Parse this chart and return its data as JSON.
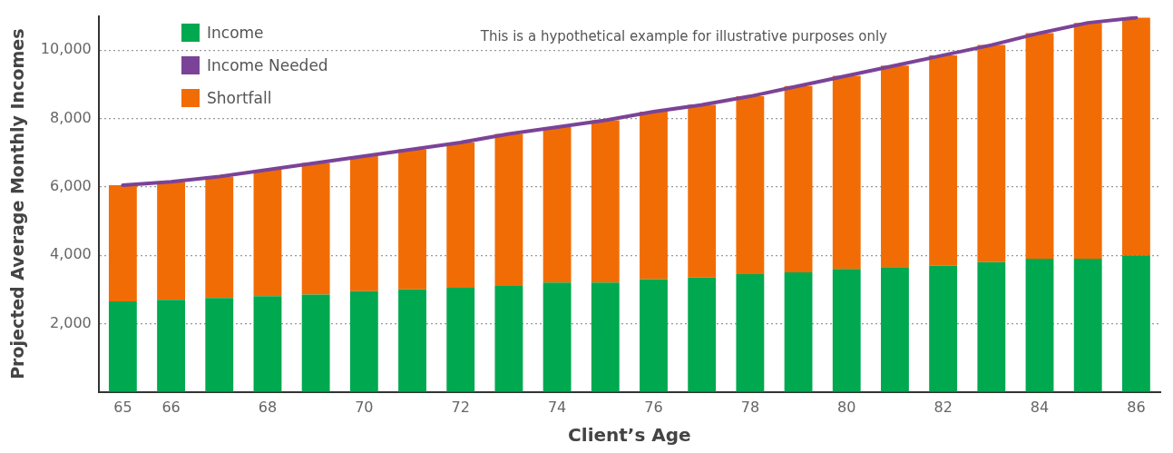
{
  "chart_data": {
    "type": "bar",
    "stacked": true,
    "xlabel": "Client’s Age",
    "ylabel": "Projected Average Monthly Incomes",
    "categories": [
      "65",
      "66",
      null,
      "68",
      null,
      "70",
      null,
      "72",
      null,
      "74",
      null,
      "76",
      null,
      "78",
      null,
      "80",
      null,
      "82",
      null,
      "84",
      null,
      "86"
    ],
    "series": [
      {
        "name": "Income",
        "color": "#00a84f",
        "values": [
          2650,
          2700,
          2750,
          2800,
          2850,
          2950,
          3000,
          3050,
          3100,
          3200,
          3200,
          3300,
          3350,
          3450,
          3500,
          3600,
          3650,
          3700,
          3800,
          3900,
          3900,
          4000
        ]
      },
      {
        "name": "Income Needed",
        "type": "line",
        "color": "#7b4397",
        "values": [
          6050,
          6150,
          6300,
          6500,
          6700,
          6900,
          7100,
          7300,
          7550,
          7750,
          7950,
          8200,
          8400,
          8650,
          8950,
          9250,
          9550,
          9850,
          10150,
          10500,
          10800,
          10950
        ]
      },
      {
        "name": "Shortfall",
        "color": "#f26c05",
        "values": [
          3400,
          3450,
          3550,
          3700,
          3850,
          3950,
          4100,
          4250,
          4450,
          4550,
          4750,
          4900,
          5050,
          5200,
          5450,
          5650,
          5900,
          6150,
          6350,
          6600,
          6900,
          6950
        ]
      }
    ],
    "ylim": [
      0,
      11000
    ],
    "yticks": [
      {
        "value": 2000,
        "label": "2,000"
      },
      {
        "value": 4000,
        "label": "4,000"
      },
      {
        "value": 6000,
        "label": "6,000"
      },
      {
        "value": 8000,
        "label": "8,000"
      },
      {
        "value": 10000,
        "label": "10,000"
      }
    ],
    "grid": "y",
    "legend": "top left",
    "marker": "none",
    "annotations": [
      "This is a hypothetical example for illustrative purposes only"
    ]
  }
}
